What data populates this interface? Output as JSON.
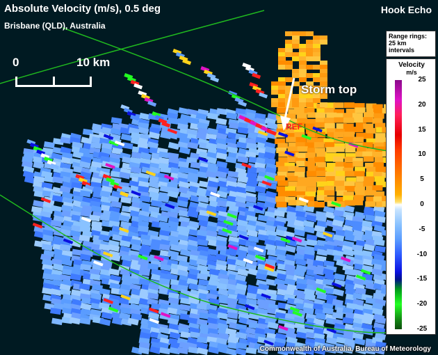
{
  "header": {
    "title": "Absolute Velocity (m/s), 0.5 deg",
    "location": "Brisbane (QLD), Australia",
    "scenario": "Hook Echo"
  },
  "scale": {
    "zero_label": "0",
    "distance_label": "10 km"
  },
  "annotation": {
    "storm_top": "Storm top",
    "ref_label": "REF"
  },
  "legend": {
    "rings_line1": "Range rings:",
    "rings_line2": "25 km",
    "rings_line3": "intervals",
    "velocity_title": "Velocity",
    "velocity_unit": "m/s",
    "ticks": [
      "25",
      "20",
      "15",
      "10",
      "5",
      "0",
      "-5",
      "-10",
      "-15",
      "-20",
      "-25"
    ]
  },
  "credit": "Commonwealth of Australia, Bureau of Meteorology",
  "colors": {
    "background": "#001a22",
    "range_ring": "#1fb81f",
    "inbound_light": "#89c2ff",
    "inbound_mid": "#5a9cff",
    "inbound_dark": "#2e5cff",
    "outbound_orange": "#ff9a10",
    "outbound_yellow": "#ffd31a",
    "outbound_red": "#ff2020"
  }
}
